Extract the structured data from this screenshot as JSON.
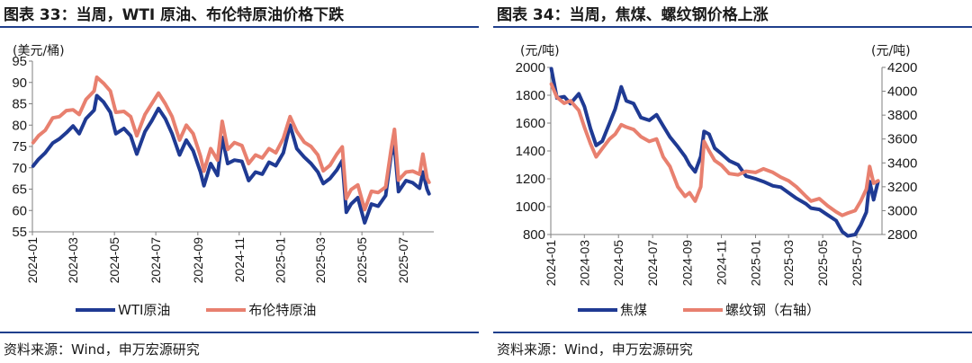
{
  "left": {
    "title": "图表 33：当周，WTI 原油、布伦特原油价格下跌",
    "source": "资料来源：Wind，申万宏源研究",
    "chart_data": {
      "type": "line",
      "ylabel": "(美元/桶)",
      "ylim": [
        55,
        95
      ],
      "yticks": [
        55,
        60,
        65,
        70,
        75,
        80,
        85,
        90,
        95
      ],
      "xlim": [
        "2024-01-01",
        "2025-08-15"
      ],
      "xticks": [
        "2024-01",
        "2024-03",
        "2024-05",
        "2024-07",
        "2024-09",
        "2024-11",
        "2025-01",
        "2025-03",
        "2025-05",
        "2025-07"
      ],
      "grid": false,
      "legend_position": "bottom",
      "series": [
        {
          "name": "WTI原油",
          "color": "#1f3a93",
          "points": [
            [
              "2024-01-02",
              70.4
            ],
            [
              "2024-01-10",
              72.0
            ],
            [
              "2024-01-20",
              73.5
            ],
            [
              "2024-01-31",
              75.8
            ],
            [
              "2024-02-10",
              76.8
            ],
            [
              "2024-02-20",
              78.2
            ],
            [
              "2024-03-01",
              79.8
            ],
            [
              "2024-03-10",
              78.0
            ],
            [
              "2024-03-20",
              81.5
            ],
            [
              "2024-04-01",
              83.5
            ],
            [
              "2024-04-05",
              86.9
            ],
            [
              "2024-04-15",
              85.4
            ],
            [
              "2024-04-25",
              83.0
            ],
            [
              "2024-05-03",
              78.0
            ],
            [
              "2024-05-15",
              79.2
            ],
            [
              "2024-05-25",
              77.5
            ],
            [
              "2024-06-03",
              73.2
            ],
            [
              "2024-06-15",
              78.5
            ],
            [
              "2024-06-25",
              81.0
            ],
            [
              "2024-07-05",
              83.9
            ],
            [
              "2024-07-15",
              81.5
            ],
            [
              "2024-07-25",
              78.0
            ],
            [
              "2024-08-05",
              73.0
            ],
            [
              "2024-08-15",
              76.5
            ],
            [
              "2024-08-25",
              74.0
            ],
            [
              "2024-09-05",
              69.0
            ],
            [
              "2024-09-10",
              65.8
            ],
            [
              "2024-09-20",
              71.0
            ],
            [
              "2024-09-30",
              68.2
            ],
            [
              "2024-10-07",
              77.1
            ],
            [
              "2024-10-15",
              71.0
            ],
            [
              "2024-10-25",
              71.8
            ],
            [
              "2024-11-05",
              71.5
            ],
            [
              "2024-11-15",
              67.0
            ],
            [
              "2024-11-25",
              69.0
            ],
            [
              "2024-12-05",
              68.5
            ],
            [
              "2024-12-15",
              71.3
            ],
            [
              "2024-12-25",
              70.5
            ],
            [
              "2025-01-05",
              73.5
            ],
            [
              "2025-01-15",
              80.0
            ],
            [
              "2025-01-25",
              74.5
            ],
            [
              "2025-02-05",
              72.5
            ],
            [
              "2025-02-15",
              71.0
            ],
            [
              "2025-02-25",
              69.0
            ],
            [
              "2025-03-05",
              66.3
            ],
            [
              "2025-03-15",
              67.5
            ],
            [
              "2025-03-25",
              69.5
            ],
            [
              "2025-04-02",
              71.7
            ],
            [
              "2025-04-08",
              59.6
            ],
            [
              "2025-04-15",
              61.5
            ],
            [
              "2025-04-25",
              63.0
            ],
            [
              "2025-05-05",
              57.1
            ],
            [
              "2025-05-15",
              61.5
            ],
            [
              "2025-05-25",
              61.0
            ],
            [
              "2025-06-05",
              63.5
            ],
            [
              "2025-06-13",
              72.9
            ],
            [
              "2025-06-18",
              75.1
            ],
            [
              "2025-06-24",
              64.4
            ],
            [
              "2025-07-05",
              67.0
            ],
            [
              "2025-07-15",
              66.5
            ],
            [
              "2025-07-25",
              65.2
            ],
            [
              "2025-07-30",
              69.0
            ],
            [
              "2025-08-05",
              65.0
            ],
            [
              "2025-08-08",
              63.9
            ]
          ]
        },
        {
          "name": "布伦特原油",
          "color": "#e8806f",
          "points": [
            [
              "2024-01-02",
              75.9
            ],
            [
              "2024-01-10",
              77.5
            ],
            [
              "2024-01-20",
              78.8
            ],
            [
              "2024-01-31",
              81.7
            ],
            [
              "2024-02-10",
              82.0
            ],
            [
              "2024-02-20",
              83.4
            ],
            [
              "2024-03-01",
              83.6
            ],
            [
              "2024-03-10",
              82.5
            ],
            [
              "2024-03-20",
              86.0
            ],
            [
              "2024-04-01",
              88.0
            ],
            [
              "2024-04-05",
              91.2
            ],
            [
              "2024-04-15",
              89.8
            ],
            [
              "2024-04-25",
              88.0
            ],
            [
              "2024-05-03",
              83.0
            ],
            [
              "2024-05-15",
              83.2
            ],
            [
              "2024-05-25",
              82.0
            ],
            [
              "2024-06-03",
              77.5
            ],
            [
              "2024-06-15",
              82.5
            ],
            [
              "2024-06-25",
              85.0
            ],
            [
              "2024-07-05",
              87.5
            ],
            [
              "2024-07-15",
              85.0
            ],
            [
              "2024-07-25",
              82.0
            ],
            [
              "2024-08-05",
              76.5
            ],
            [
              "2024-08-15",
              80.0
            ],
            [
              "2024-08-25",
              78.0
            ],
            [
              "2024-09-05",
              72.7
            ],
            [
              "2024-09-10",
              69.2
            ],
            [
              "2024-09-20",
              74.5
            ],
            [
              "2024-09-30",
              71.8
            ],
            [
              "2024-10-07",
              80.9
            ],
            [
              "2024-10-15",
              74.3
            ],
            [
              "2024-10-25",
              75.9
            ],
            [
              "2024-11-05",
              75.2
            ],
            [
              "2024-11-15",
              71.0
            ],
            [
              "2024-11-25",
              73.0
            ],
            [
              "2024-12-05",
              72.3
            ],
            [
              "2024-12-15",
              74.5
            ],
            [
              "2024-12-25",
              73.5
            ],
            [
              "2025-01-05",
              76.9
            ],
            [
              "2025-01-15",
              82.0
            ],
            [
              "2025-01-25",
              78.5
            ],
            [
              "2025-02-05",
              76.0
            ],
            [
              "2025-02-15",
              75.0
            ],
            [
              "2025-02-25",
              73.0
            ],
            [
              "2025-03-05",
              69.3
            ],
            [
              "2025-03-15",
              70.6
            ],
            [
              "2025-03-25",
              73.2
            ],
            [
              "2025-04-02",
              74.9
            ],
            [
              "2025-04-08",
              62.8
            ],
            [
              "2025-04-15",
              64.9
            ],
            [
              "2025-04-25",
              66.0
            ],
            [
              "2025-05-05",
              60.2
            ],
            [
              "2025-05-15",
              64.5
            ],
            [
              "2025-05-25",
              64.2
            ],
            [
              "2025-06-05",
              65.5
            ],
            [
              "2025-06-13",
              74.2
            ],
            [
              "2025-06-18",
              79.0
            ],
            [
              "2025-06-24",
              67.1
            ],
            [
              "2025-07-05",
              69.0
            ],
            [
              "2025-07-15",
              69.2
            ],
            [
              "2025-07-25",
              68.5
            ],
            [
              "2025-07-30",
              73.2
            ],
            [
              "2025-08-05",
              67.5
            ],
            [
              "2025-08-08",
              66.6
            ]
          ]
        }
      ]
    }
  },
  "right": {
    "title": "图表 34：当周，焦煤、螺纹钢价格上涨",
    "source": "资料来源：Wind，申万宏源研究",
    "chart_data": {
      "type": "line",
      "ylabel": "(元/吨)",
      "ylim": [
        800,
        2000
      ],
      "yticks": [
        800,
        1000,
        1200,
        1400,
        1600,
        1800,
        2000
      ],
      "y2label": "(元/吨)",
      "y2lim": [
        2800,
        4200
      ],
      "y2ticks": [
        2800,
        3000,
        3200,
        3400,
        3600,
        3800,
        4000,
        4200
      ],
      "xlim": [
        "2024-01-01",
        "2025-08-15"
      ],
      "xticks": [
        "2024-01",
        "2024-03",
        "2024-05",
        "2024-07",
        "2024-09",
        "2024-11",
        "2025-01",
        "2025-03",
        "2025-05",
        "2025-07"
      ],
      "grid": false,
      "legend_position": "bottom",
      "series": [
        {
          "name": "焦煤",
          "axis": "left",
          "color": "#1f3a93",
          "points": [
            [
              "2024-01-02",
              1990
            ],
            [
              "2024-01-12",
              1780
            ],
            [
              "2024-01-25",
              1790
            ],
            [
              "2024-02-05",
              1740
            ],
            [
              "2024-02-20",
              1810
            ],
            [
              "2024-03-01",
              1720
            ],
            [
              "2024-03-12",
              1560
            ],
            [
              "2024-03-22",
              1440
            ],
            [
              "2024-04-02",
              1470
            ],
            [
              "2024-04-15",
              1600
            ],
            [
              "2024-04-25",
              1700
            ],
            [
              "2024-05-06",
              1860
            ],
            [
              "2024-05-15",
              1760
            ],
            [
              "2024-05-28",
              1740
            ],
            [
              "2024-06-10",
              1640
            ],
            [
              "2024-06-25",
              1620
            ],
            [
              "2024-07-08",
              1660
            ],
            [
              "2024-07-20",
              1580
            ],
            [
              "2024-08-01",
              1500
            ],
            [
              "2024-08-15",
              1430
            ],
            [
              "2024-08-28",
              1360
            ],
            [
              "2024-09-05",
              1300
            ],
            [
              "2024-09-15",
              1250
            ],
            [
              "2024-09-25",
              1360
            ],
            [
              "2024-10-01",
              1540
            ],
            [
              "2024-10-10",
              1520
            ],
            [
              "2024-10-20",
              1420
            ],
            [
              "2024-11-01",
              1380
            ],
            [
              "2024-11-15",
              1330
            ],
            [
              "2024-12-01",
              1300
            ],
            [
              "2024-12-15",
              1220
            ],
            [
              "2025-01-01",
              1200
            ],
            [
              "2025-01-15",
              1180
            ],
            [
              "2025-02-01",
              1150
            ],
            [
              "2025-02-15",
              1140
            ],
            [
              "2025-03-01",
              1100
            ],
            [
              "2025-03-15",
              1060
            ],
            [
              "2025-04-01",
              1020
            ],
            [
              "2025-04-10",
              990
            ],
            [
              "2025-04-25",
              980
            ],
            [
              "2025-05-10",
              940
            ],
            [
              "2025-05-25",
              900
            ],
            [
              "2025-06-05",
              820
            ],
            [
              "2025-06-15",
              790
            ],
            [
              "2025-06-28",
              800
            ],
            [
              "2025-07-08",
              870
            ],
            [
              "2025-07-18",
              960
            ],
            [
              "2025-07-24",
              1180
            ],
            [
              "2025-07-31",
              1050
            ],
            [
              "2025-08-08",
              1180
            ]
          ]
        },
        {
          "name": "螺纹钢（右轴）",
          "axis": "right",
          "color": "#e8806f",
          "points": [
            [
              "2024-01-02",
              4060
            ],
            [
              "2024-01-12",
              3950
            ],
            [
              "2024-01-25",
              3900
            ],
            [
              "2024-02-05",
              3920
            ],
            [
              "2024-02-20",
              3840
            ],
            [
              "2024-03-01",
              3700
            ],
            [
              "2024-03-12",
              3560
            ],
            [
              "2024-03-22",
              3450
            ],
            [
              "2024-04-02",
              3520
            ],
            [
              "2024-04-15",
              3600
            ],
            [
              "2024-04-25",
              3640
            ],
            [
              "2024-05-06",
              3720
            ],
            [
              "2024-05-15",
              3700
            ],
            [
              "2024-05-28",
              3680
            ],
            [
              "2024-06-10",
              3620
            ],
            [
              "2024-06-25",
              3580
            ],
            [
              "2024-07-08",
              3600
            ],
            [
              "2024-07-20",
              3450
            ],
            [
              "2024-08-01",
              3370
            ],
            [
              "2024-08-15",
              3200
            ],
            [
              "2024-08-28",
              3120
            ],
            [
              "2024-09-05",
              3150
            ],
            [
              "2024-09-15",
              3080
            ],
            [
              "2024-09-25",
              3200
            ],
            [
              "2024-10-01",
              3580
            ],
            [
              "2024-10-10",
              3500
            ],
            [
              "2024-10-20",
              3420
            ],
            [
              "2024-11-01",
              3380
            ],
            [
              "2024-11-15",
              3310
            ],
            [
              "2024-12-01",
              3300
            ],
            [
              "2024-12-15",
              3330
            ],
            [
              "2025-01-01",
              3320
            ],
            [
              "2025-01-15",
              3350
            ],
            [
              "2025-02-01",
              3320
            ],
            [
              "2025-02-15",
              3280
            ],
            [
              "2025-03-01",
              3250
            ],
            [
              "2025-03-15",
              3200
            ],
            [
              "2025-04-01",
              3120
            ],
            [
              "2025-04-10",
              3080
            ],
            [
              "2025-04-25",
              3100
            ],
            [
              "2025-05-10",
              3040
            ],
            [
              "2025-05-25",
              2990
            ],
            [
              "2025-06-05",
              2960
            ],
            [
              "2025-06-15",
              2980
            ],
            [
              "2025-06-28",
              3000
            ],
            [
              "2025-07-08",
              3080
            ],
            [
              "2025-07-18",
              3180
            ],
            [
              "2025-07-24",
              3370
            ],
            [
              "2025-07-31",
              3230
            ],
            [
              "2025-08-08",
              3250
            ]
          ]
        }
      ]
    }
  }
}
